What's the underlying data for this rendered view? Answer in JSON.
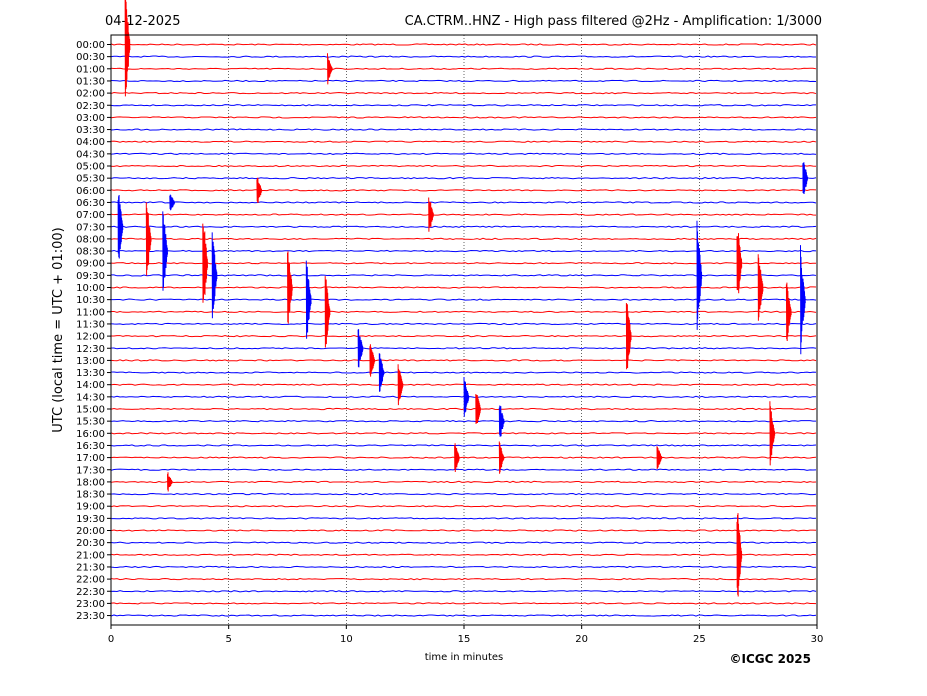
{
  "header": {
    "date": "04-12-2025",
    "title": "CA.CTRM..HNZ - High pass filtered @2Hz - Amplification: 1/3000"
  },
  "footer": {
    "copyright": "©ICGC 2025"
  },
  "chart_data": {
    "type": "line",
    "title": "CA.CTRM..HNZ - High pass filtered @2Hz - Amplification: 1/3000",
    "xlabel": "time in minutes",
    "ylabel": "UTC (local time = UTC + 01:00)",
    "xlim": [
      0,
      30
    ],
    "x_ticks": [
      0,
      5,
      10,
      15,
      20,
      25,
      30
    ],
    "grid": "vertical dotted lines at every 5 minutes",
    "row_labels": [
      "00:00",
      "00:30",
      "01:00",
      "01:30",
      "02:00",
      "02:30",
      "03:00",
      "03:30",
      "04:00",
      "04:30",
      "05:00",
      "05:30",
      "06:00",
      "06:30",
      "07:00",
      "07:30",
      "08:00",
      "08:30",
      "09:00",
      "09:30",
      "10:00",
      "10:30",
      "11:00",
      "11:30",
      "12:00",
      "12:30",
      "13:00",
      "13:30",
      "14:00",
      "14:30",
      "15:00",
      "15:30",
      "16:00",
      "16:30",
      "17:00",
      "17:30",
      "18:00",
      "18:30",
      "19:00",
      "19:30",
      "20:00",
      "20:30",
      "21:00",
      "21:30",
      "22:00",
      "22:30",
      "23:00",
      "23:30"
    ],
    "trace_colors": [
      "#ff0000",
      "#0000ff"
    ],
    "events": [
      {
        "row": 0,
        "minute": 0.6,
        "amp": 6
      },
      {
        "row": 2,
        "minute": 9.2,
        "amp": 1.5
      },
      {
        "row": 11,
        "minute": 29.4,
        "amp": 2
      },
      {
        "row": 12,
        "minute": 6.2,
        "amp": 1.5
      },
      {
        "row": 13,
        "minute": 2.5,
        "amp": 1
      },
      {
        "row": 14,
        "minute": 13.5,
        "amp": 2
      },
      {
        "row": 15,
        "minute": 0.3,
        "amp": 4
      },
      {
        "row": 16,
        "minute": 1.5,
        "amp": 4
      },
      {
        "row": 17,
        "minute": 2.2,
        "amp": 4
      },
      {
        "row": 18,
        "minute": 3.9,
        "amp": 5
      },
      {
        "row": 19,
        "minute": 4.3,
        "amp": 4
      },
      {
        "row": 20,
        "minute": 7.5,
        "amp": 4
      },
      {
        "row": 21,
        "minute": 8.3,
        "amp": 4
      },
      {
        "row": 22,
        "minute": 9.1,
        "amp": 4
      },
      {
        "row": 18,
        "minute": 26.6,
        "amp": 4
      },
      {
        "row": 19,
        "minute": 24.9,
        "amp": 5
      },
      {
        "row": 20,
        "minute": 27.5,
        "amp": 4
      },
      {
        "row": 21,
        "minute": 29.3,
        "amp": 5
      },
      {
        "row": 22,
        "minute": 28.7,
        "amp": 3
      },
      {
        "row": 24,
        "minute": 21.9,
        "amp": 4
      },
      {
        "row": 25,
        "minute": 10.5,
        "amp": 2
      },
      {
        "row": 26,
        "minute": 11.0,
        "amp": 2
      },
      {
        "row": 27,
        "minute": 11.4,
        "amp": 2
      },
      {
        "row": 28,
        "minute": 12.2,
        "amp": 2
      },
      {
        "row": 29,
        "minute": 15.0,
        "amp": 2
      },
      {
        "row": 30,
        "minute": 15.5,
        "amp": 2
      },
      {
        "row": 31,
        "minute": 16.5,
        "amp": 2
      },
      {
        "row": 32,
        "minute": 28.0,
        "amp": 3
      },
      {
        "row": 34,
        "minute": 14.6,
        "amp": 1.5
      },
      {
        "row": 34,
        "minute": 16.5,
        "amp": 1.5
      },
      {
        "row": 34,
        "minute": 23.2,
        "amp": 1.2
      },
      {
        "row": 36,
        "minute": 2.4,
        "amp": 1
      },
      {
        "row": 42,
        "minute": 26.6,
        "amp": 5
      }
    ]
  }
}
